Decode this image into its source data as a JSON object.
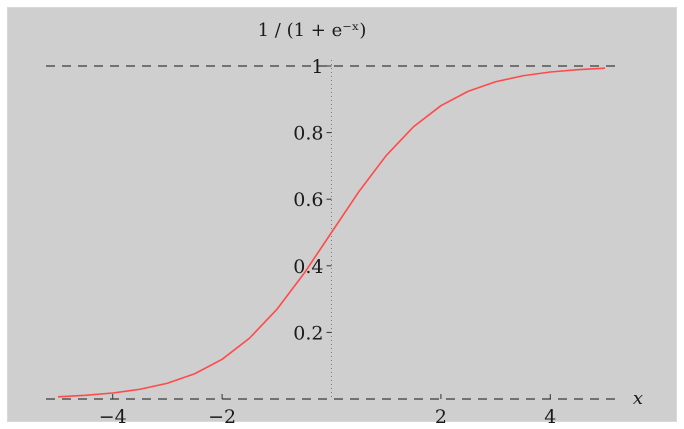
{
  "chart_data": {
    "type": "line",
    "title": "",
    "ylabel": "1 / (1 + e⁻ˣ)",
    "xlabel": "x",
    "xlim": [
      -5,
      5
    ],
    "ylim": [
      0,
      1
    ],
    "x_ticks": [
      -4,
      -2,
      2,
      4
    ],
    "x_tick_labels": [
      "−4",
      "−2",
      "2",
      "4"
    ],
    "y_ticks": [
      0.2,
      0.4,
      0.6,
      0.8,
      1
    ],
    "y_tick_labels": [
      "0.2",
      "0.4",
      "0.6",
      "0.8",
      "1"
    ],
    "asymptotes": [
      0,
      1
    ],
    "grid": false,
    "series": [
      {
        "color": "#ff4a4a",
        "x": [
          -5,
          -4.5,
          -4,
          -3.5,
          -3,
          -2.5,
          -2,
          -1.5,
          -1,
          -0.5,
          0,
          0.5,
          1,
          1.5,
          2,
          2.5,
          3,
          3.5,
          4,
          4.5,
          5
        ],
        "y": [
          0.0067,
          0.011,
          0.018,
          0.0293,
          0.0474,
          0.0759,
          0.1192,
          0.1824,
          0.2689,
          0.3775,
          0.5,
          0.6225,
          0.7311,
          0.8176,
          0.8808,
          0.9241,
          0.9526,
          0.9707,
          0.982,
          0.989,
          0.9933
        ]
      }
    ]
  }
}
